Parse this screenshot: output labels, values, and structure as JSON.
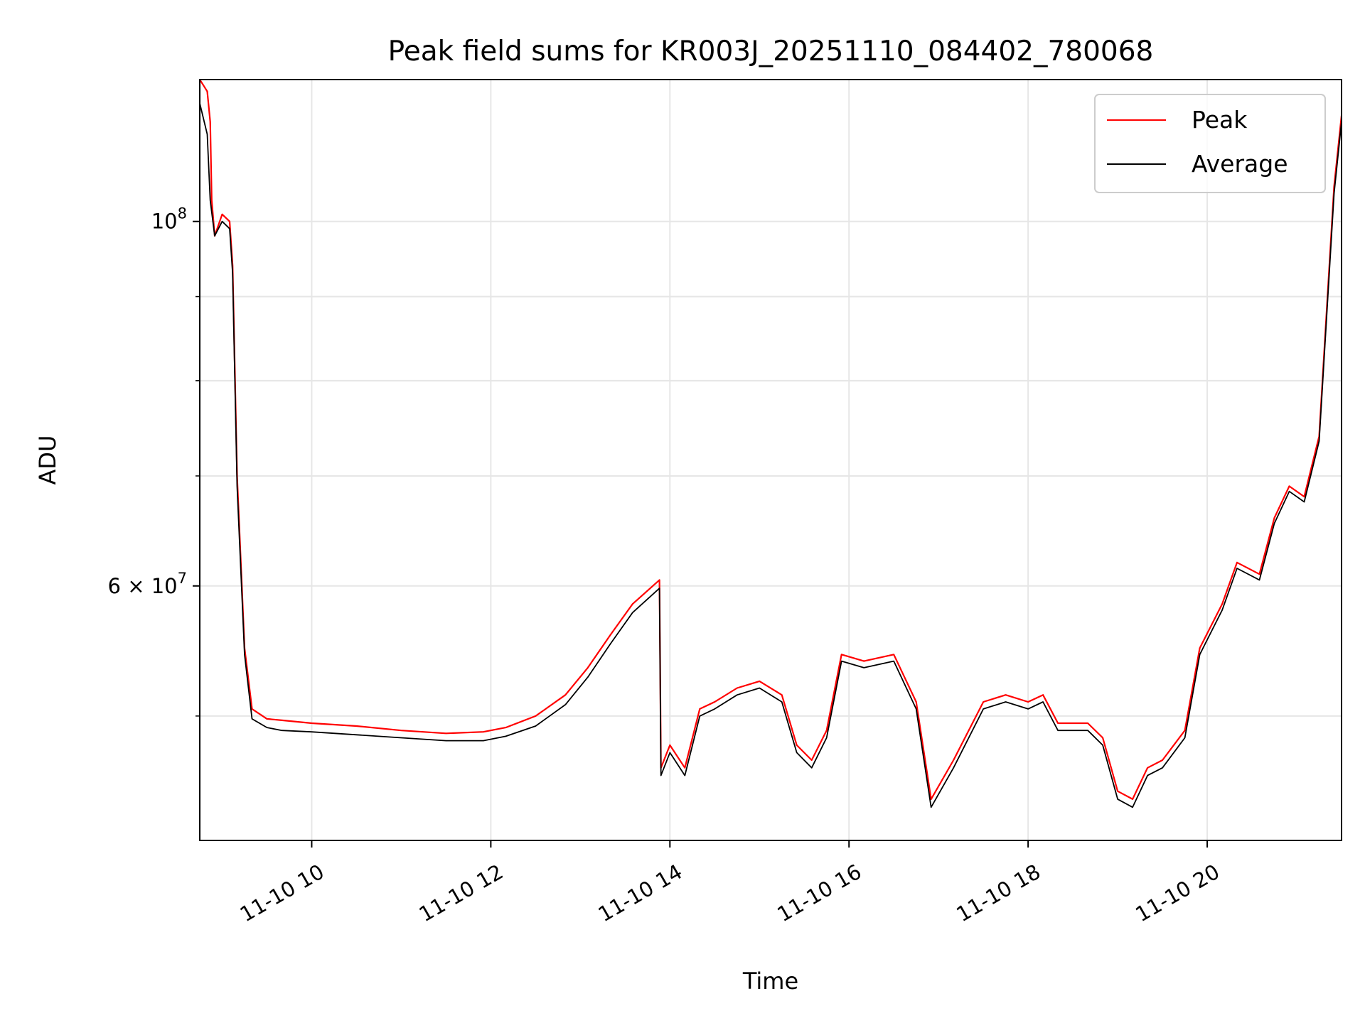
{
  "chart_data": {
    "type": "line",
    "title": "Peak field sums for KR003J_20251110_084402_780068",
    "xlabel": "Time",
    "ylabel": "ADU",
    "y_scale": "log",
    "ylim": [
      42000000,
      122000000
    ],
    "xlim": [
      "11-10 08:45",
      "11-10 21:30"
    ],
    "grid": true,
    "legend_position": "top-right",
    "x_tick_labels": [
      "11-10 10",
      "11-10 12",
      "11-10 14",
      "11-10 16",
      "11-10 18",
      "11-10 20"
    ],
    "x_tick_values": [
      "11-10 10:00",
      "11-10 12:00",
      "11-10 14:00",
      "11-10 16:00",
      "11-10 18:00",
      "11-10 20:00"
    ],
    "y_tick_labels": [
      {
        "value": 100000000,
        "base": "10",
        "exp": "8"
      },
      {
        "value": 60000000,
        "base": "6 × 10",
        "exp": "7"
      }
    ],
    "y_minor_ticks": [
      50000000,
      70000000,
      80000000,
      90000000
    ],
    "series": [
      {
        "name": "Peak",
        "color": "#ff0000",
        "x": [
          "11-10 08:45",
          "11-10 08:50",
          "11-10 08:52",
          "11-10 08:53",
          "11-10 08:55",
          "11-10 09:00",
          "11-10 09:05",
          "11-10 09:07",
          "11-10 09:10",
          "11-10 09:15",
          "11-10 09:20",
          "11-10 09:30",
          "11-10 09:40",
          "11-10 10:00",
          "11-10 10:30",
          "11-10 11:00",
          "11-10 11:30",
          "11-10 11:55",
          "11-10 12:10",
          "11-10 12:30",
          "11-10 12:50",
          "11-10 13:05",
          "11-10 13:20",
          "11-10 13:35",
          "11-10 13:53",
          "11-10 13:54",
          "11-10 14:00",
          "11-10 14:10",
          "11-10 14:20",
          "11-10 14:30",
          "11-10 14:45",
          "11-10 15:00",
          "11-10 15:15",
          "11-10 15:25",
          "11-10 15:35",
          "11-10 15:45",
          "11-10 15:55",
          "11-10 16:10",
          "11-10 16:30",
          "11-10 16:45",
          "11-10 16:55",
          "11-10 17:10",
          "11-10 17:30",
          "11-10 17:45",
          "11-10 18:00",
          "11-10 18:10",
          "11-10 18:20",
          "11-10 18:40",
          "11-10 18:50",
          "11-10 19:00",
          "11-10 19:10",
          "11-10 19:20",
          "11-10 19:30",
          "11-10 19:45",
          "11-10 19:55",
          "11-10 20:10",
          "11-10 20:20",
          "11-10 20:35",
          "11-10 20:45",
          "11-10 20:55",
          "11-10 21:05",
          "11-10 21:15",
          "11-10 21:25",
          "11-10 21:30"
        ],
        "y": [
          122000000,
          120000000,
          115000000,
          103000000,
          98000000,
          101000000,
          100000000,
          94000000,
          70000000,
          55000000,
          50500000,
          49800000,
          49700000,
          49500000,
          49300000,
          49000000,
          48800000,
          48900000,
          49200000,
          50000000,
          51500000,
          53500000,
          56000000,
          58500000,
          60500000,
          46500000,
          48000000,
          46500000,
          50500000,
          51000000,
          52000000,
          52500000,
          51500000,
          48000000,
          47000000,
          49000000,
          54500000,
          54000000,
          54500000,
          51000000,
          44500000,
          47000000,
          51000000,
          51500000,
          51000000,
          51500000,
          49500000,
          49500000,
          48500000,
          45000000,
          44500000,
          46500000,
          47000000,
          49000000,
          55000000,
          58500000,
          62000000,
          61000000,
          66000000,
          69000000,
          68000000,
          74000000,
          105000000,
          116000000
        ]
      },
      {
        "name": "Average",
        "color": "#000000",
        "x": [
          "11-10 08:45",
          "11-10 08:50",
          "11-10 08:52",
          "11-10 08:55",
          "11-10 09:00",
          "11-10 09:05",
          "11-10 09:07",
          "11-10 09:10",
          "11-10 09:15",
          "11-10 09:20",
          "11-10 09:30",
          "11-10 09:40",
          "11-10 10:00",
          "11-10 10:30",
          "11-10 11:00",
          "11-10 11:30",
          "11-10 11:55",
          "11-10 12:10",
          "11-10 12:30",
          "11-10 12:50",
          "11-10 13:05",
          "11-10 13:20",
          "11-10 13:35",
          "11-10 13:53",
          "11-10 13:54",
          "11-10 14:00",
          "11-10 14:10",
          "11-10 14:20",
          "11-10 14:30",
          "11-10 14:45",
          "11-10 15:00",
          "11-10 15:15",
          "11-10 15:25",
          "11-10 15:35",
          "11-10 15:45",
          "11-10 15:55",
          "11-10 16:10",
          "11-10 16:30",
          "11-10 16:45",
          "11-10 16:55",
          "11-10 17:10",
          "11-10 17:30",
          "11-10 17:45",
          "11-10 18:00",
          "11-10 18:10",
          "11-10 18:20",
          "11-10 18:40",
          "11-10 18:50",
          "11-10 19:00",
          "11-10 19:10",
          "11-10 19:20",
          "11-10 19:30",
          "11-10 19:45",
          "11-10 19:55",
          "11-10 20:10",
          "11-10 20:20",
          "11-10 20:35",
          "11-10 20:45",
          "11-10 20:55",
          "11-10 21:05",
          "11-10 21:15",
          "11-10 21:25",
          "11-10 21:30"
        ],
        "y": [
          118000000,
          113000000,
          103000000,
          98000000,
          100000000,
          99000000,
          93000000,
          69000000,
          54500000,
          49800000,
          49200000,
          49000000,
          48900000,
          48700000,
          48500000,
          48300000,
          48300000,
          48600000,
          49300000,
          50800000,
          52800000,
          55300000,
          57800000,
          59800000,
          46000000,
          47500000,
          46000000,
          50000000,
          50500000,
          51500000,
          52000000,
          51000000,
          47500000,
          46500000,
          48500000,
          54000000,
          53500000,
          54000000,
          50500000,
          44000000,
          46500000,
          50500000,
          51000000,
          50500000,
          51000000,
          49000000,
          49000000,
          48000000,
          44500000,
          44000000,
          46000000,
          46500000,
          48500000,
          54500000,
          58000000,
          61500000,
          60500000,
          65500000,
          68500000,
          67500000,
          73500000,
          104000000,
          115000000
        ]
      }
    ]
  }
}
